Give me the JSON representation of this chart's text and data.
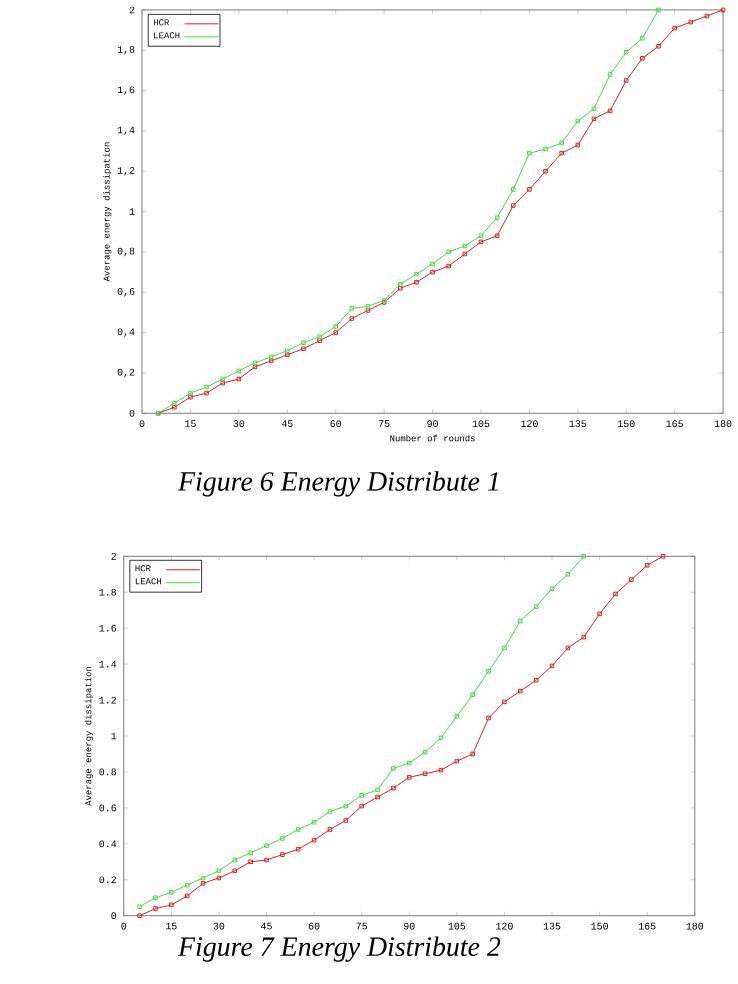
{
  "chart_data": [
    {
      "type": "line",
      "xlabel": "Number of rounds",
      "ylabel": "Average energy dissipation",
      "annotations": [
        "Figure 6 Energy Distribute 1"
      ],
      "x": [
        5,
        10,
        15,
        20,
        25,
        30,
        35,
        40,
        45,
        50,
        55,
        60,
        65,
        70,
        75,
        80,
        85,
        90,
        95,
        100,
        105,
        110,
        115,
        120,
        125,
        130,
        135,
        140,
        145,
        150,
        155,
        160,
        165,
        170,
        175,
        180
      ],
      "series": [
        {
          "name": "HCR",
          "color": "#e02020",
          "values": [
            0,
            0.03,
            0.08,
            0.1,
            0.15,
            0.17,
            0.23,
            0.26,
            0.29,
            0.32,
            0.36,
            0.4,
            0.47,
            0.51,
            0.55,
            0.62,
            0.65,
            0.7,
            0.73,
            0.79,
            0.85,
            0.88,
            1.03,
            1.11,
            1.2,
            1.29,
            1.33,
            1.46,
            1.5,
            1.65,
            1.76,
            1.82,
            1.91,
            1.94,
            1.97,
            2.0
          ]
        },
        {
          "name": "LEACH",
          "color": "#40e040",
          "values": [
            0,
            0.05,
            0.1,
            0.13,
            0.17,
            0.21,
            0.25,
            0.28,
            0.31,
            0.35,
            0.38,
            0.43,
            0.52,
            0.53,
            0.56,
            0.64,
            0.69,
            0.74,
            0.8,
            0.83,
            0.88,
            0.97,
            1.11,
            1.29,
            1.31,
            1.34,
            1.45,
            1.51,
            1.68,
            1.79,
            1.86,
            2.0,
            null,
            null,
            null,
            null
          ]
        }
      ],
      "xlim": [
        0,
        180
      ],
      "ylim": [
        0,
        2
      ],
      "xticks": [
        0,
        15,
        30,
        45,
        60,
        75,
        90,
        105,
        120,
        135,
        150,
        165,
        180
      ],
      "yticks": [
        0,
        {
          "value": 0.2,
          "label": "0,2"
        },
        {
          "value": 0.4,
          "label": "0,4"
        },
        {
          "value": 0.6,
          "label": "0,6"
        },
        {
          "value": 0.8,
          "label": "0,8"
        },
        1,
        {
          "value": 1.2,
          "label": "1,2"
        },
        {
          "value": 1.4,
          "label": "1,4"
        },
        {
          "value": 1.6,
          "label": "1,6"
        },
        {
          "value": 1.8,
          "label": "1,8"
        },
        2
      ],
      "legend": "top left",
      "marker": "square",
      "grid": false
    },
    {
      "type": "line",
      "ylabel": "Average energy dissipation",
      "annotations": [
        "Figure 7 Energy Distribute 2"
      ],
      "x": [
        5,
        10,
        15,
        20,
        25,
        30,
        35,
        40,
        45,
        50,
        55,
        60,
        65,
        70,
        75,
        80,
        85,
        90,
        95,
        100,
        105,
        110,
        115,
        120,
        125,
        130,
        135,
        140,
        145,
        150,
        155,
        160,
        165,
        170
      ],
      "series": [
        {
          "name": "HCR",
          "color": "#e02020",
          "values": [
            0,
            0.04,
            0.06,
            0.11,
            0.18,
            0.21,
            0.25,
            0.3,
            0.31,
            0.34,
            0.37,
            0.42,
            0.48,
            0.53,
            0.61,
            0.66,
            0.71,
            0.77,
            0.79,
            0.81,
            0.86,
            0.9,
            1.1,
            1.19,
            1.25,
            1.31,
            1.39,
            1.49,
            1.55,
            1.68,
            1.79,
            1.87,
            1.95,
            2.0
          ]
        },
        {
          "name": "LEACH",
          "color": "#40e040",
          "values": [
            0.05,
            0.1,
            0.13,
            0.17,
            0.21,
            0.25,
            0.31,
            0.35,
            0.39,
            0.43,
            0.48,
            0.52,
            0.58,
            0.61,
            0.67,
            0.7,
            0.82,
            0.85,
            0.91,
            0.99,
            1.11,
            1.23,
            1.36,
            1.49,
            1.64,
            1.72,
            1.82,
            1.9,
            2.0,
            null,
            null,
            null,
            null,
            null
          ]
        }
      ],
      "xlim": [
        0,
        180
      ],
      "ylim": [
        0,
        2
      ],
      "xticks": [
        0,
        15,
        30,
        45,
        60,
        75,
        90,
        105,
        120,
        135,
        150,
        165,
        180
      ],
      "yticks": [
        0,
        0.2,
        0.4,
        0.6,
        0.8,
        1,
        1.2,
        1.4,
        1.6,
        1.8,
        2
      ],
      "legend": "top left",
      "marker": "square",
      "grid": false
    }
  ]
}
